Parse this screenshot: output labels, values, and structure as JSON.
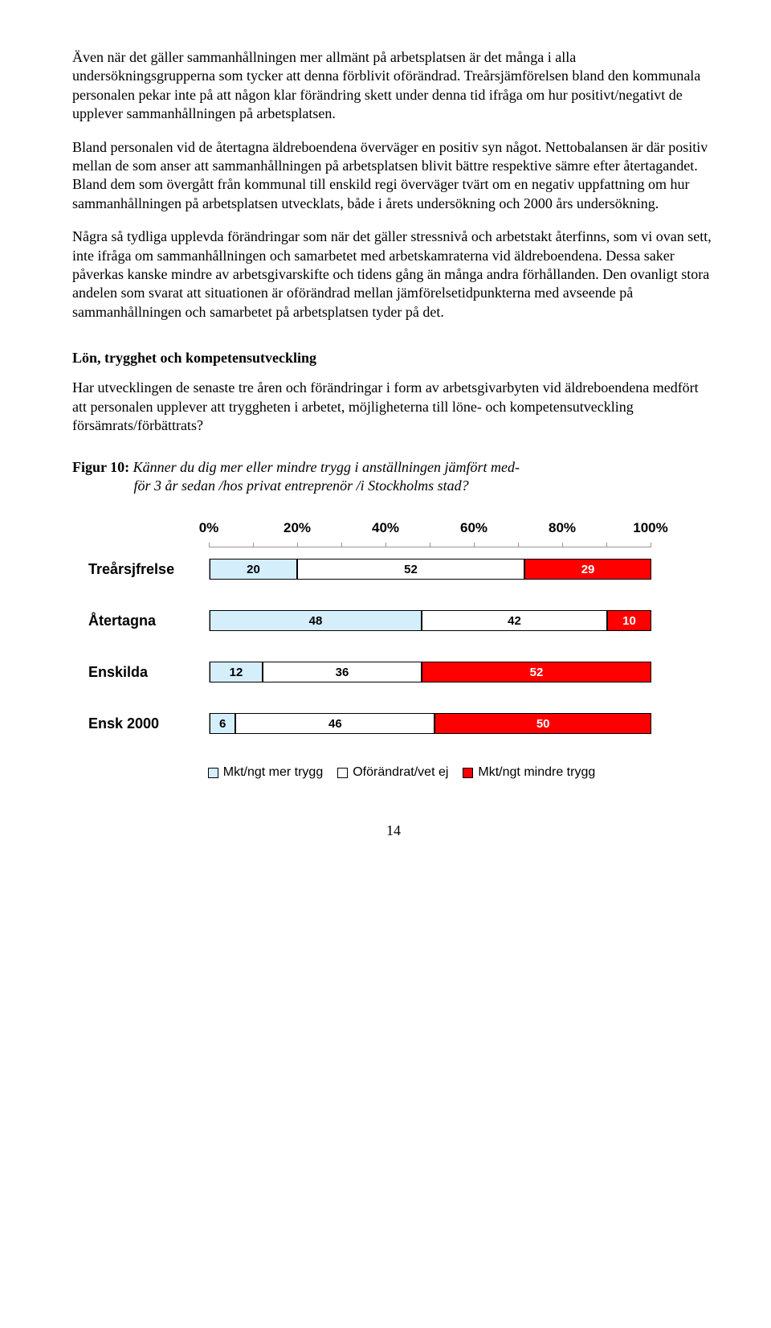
{
  "para1": "Även när det gäller sammanhållningen mer allmänt på arbetsplatsen är det många i alla undersökningsgrupperna som tycker att denna förblivit oförändrad. Treårsjämförelsen bland den kommunala personalen pekar inte på att någon klar förändring skett under denna tid ifråga om hur positivt/negativt de upplever sammanhållningen på arbetsplatsen.",
  "para2": "Bland personalen vid de återtagna äldreboendena överväger en positiv syn något. Nettobalansen är där positiv mellan de som anser att sammanhållningen på arbetsplatsen blivit bättre respektive sämre efter återtagandet. Bland dem som övergått från kommunal till enskild regi överväger tvärt om en negativ uppfattning om hur sammanhållningen på arbetsplatsen utvecklats, både i årets undersökning och 2000 års undersökning.",
  "para3": "Några så tydliga upplevda förändringar som när det gäller stressnivå och arbetstakt återfinns, som vi ovan sett, inte ifråga om sammanhållningen och samarbetet med arbetskamraterna vid äldreboendena. Dessa saker påverkas kanske mindre av arbetsgivarskifte och tidens gång än många andra förhållanden. Den ovanligt stora andelen som svarat att situationen är oförändrad mellan jämförelsetidpunkterna med avseende på sammanhållningen och samarbetet på arbetsplatsen tyder på det.",
  "heading": "Lön, trygghet och kompetensutveckling",
  "para4": "Har utvecklingen de senaste tre åren och förändringar i form av arbetsgivarbyten vid äldreboendena medfört att personalen upplever att tryggheten i arbetet, möjligheterna till löne- och kompetensutveckling försämrats/förbättrats?",
  "figure": {
    "number": "Figur 10:",
    "caption_line1": "Känner du dig mer eller mindre trygg i anställningen jämfört med-",
    "caption_line2": "för 3 år sedan /hos privat entreprenör /i Stockholms stad?"
  },
  "chart": {
    "type": "stacked-bar-horizontal",
    "xlim": [
      0,
      100
    ],
    "tick_labels": [
      "0%",
      "20%",
      "40%",
      "60%",
      "80%",
      "100%"
    ],
    "tick_positions": [
      0,
      20,
      40,
      60,
      80,
      100
    ],
    "minor_positions": [
      0,
      10,
      20,
      30,
      40,
      50,
      60,
      70,
      80,
      90,
      100
    ],
    "colors": {
      "seg1": "#d4eefc",
      "seg2": "#ffffff",
      "seg3": "#ff0000",
      "text_on_red": "#ffffff",
      "text_default": "#000000",
      "axis": "#969696"
    },
    "categories": [
      {
        "label": "Treårsjfrelse",
        "values": [
          20,
          52,
          29
        ]
      },
      {
        "label": "Återtagna",
        "values": [
          48,
          42,
          10
        ]
      },
      {
        "label": "Enskilda",
        "values": [
          12,
          36,
          52
        ]
      },
      {
        "label": "Ensk 2000",
        "values": [
          6,
          46,
          50
        ]
      }
    ],
    "legend": [
      {
        "swatch": "#d4eefc",
        "label": "Mkt/ngt mer trygg"
      },
      {
        "swatch": "#ffffff",
        "label": "Oförändrat/vet ej"
      },
      {
        "swatch": "#ff0000",
        "label": "Mkt/ngt mindre trygg"
      }
    ]
  },
  "page_number": "14"
}
